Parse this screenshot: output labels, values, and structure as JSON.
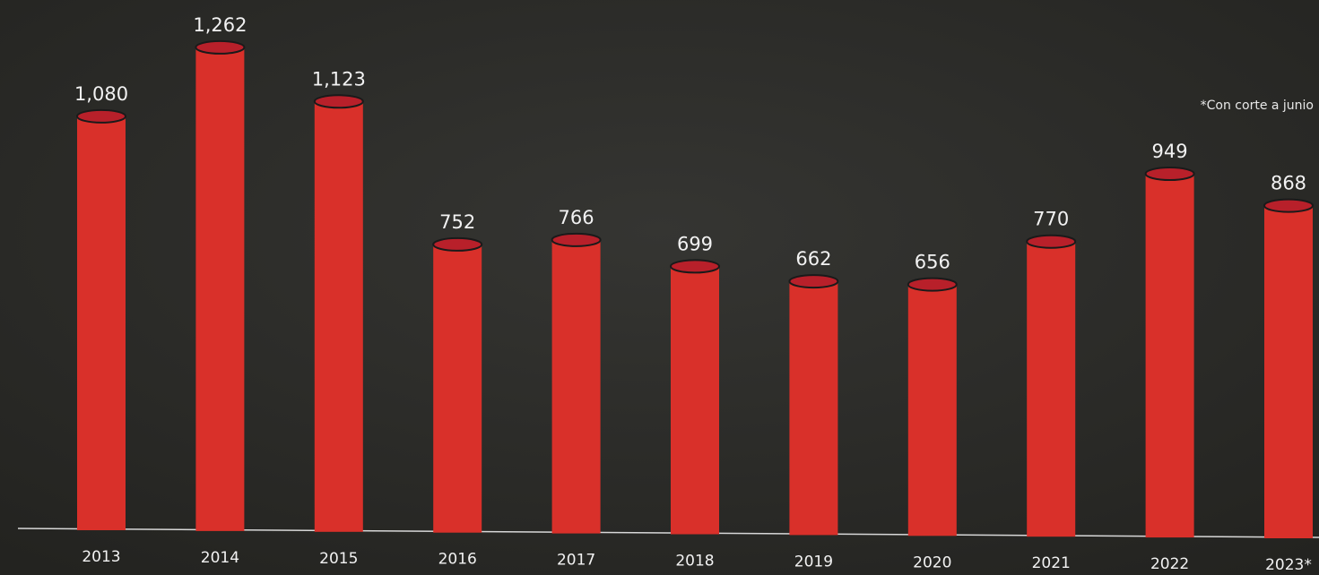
{
  "chart_data": {
    "type": "bar",
    "categories": [
      "2013",
      "2014",
      "2015",
      "2016",
      "2017",
      "2018",
      "2019",
      "2020",
      "2021",
      "2022",
      "2023*"
    ],
    "values": [
      1080,
      1262,
      1123,
      752,
      766,
      699,
      662,
      656,
      770,
      949,
      868
    ],
    "value_labels": [
      "1,080",
      "1,262",
      "1,123",
      "752",
      "766",
      "699",
      "662",
      "656",
      "770",
      "949",
      "868"
    ],
    "color": "#d9302a",
    "annotation": "*Con corte a junio"
  }
}
